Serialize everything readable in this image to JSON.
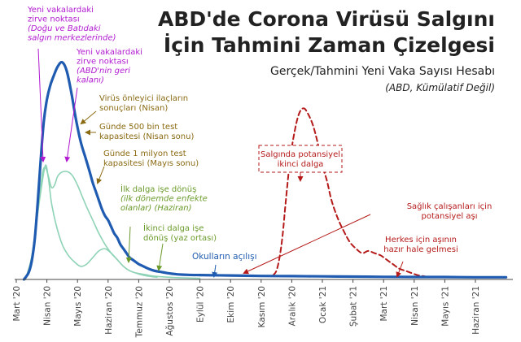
{
  "header": {
    "title_line1": "ABD'de Corona Virüsü Salgını",
    "title_line2": "İçin Tahmini Zaman Çizelgesi",
    "subtitle": "Gerçek/Tahmini Yeni Vaka Sayısı Hesabı",
    "note": "(ABD, Kümülatif Değil)"
  },
  "colors": {
    "us_series": "#1f5bb0",
    "other_series": "#8fd3b6",
    "forecast": "#b51a1a",
    "annotation_purple": "#b21ad1",
    "annotation_olive": "#8a6a12",
    "annotation_green": "#6a9a2a",
    "annotation_blue": "#1f5bb0",
    "annotation_red": "#b51a1a",
    "axis": "#444444"
  },
  "chart_data": {
    "type": "line",
    "title": "ABD'de Corona Virüsü Salgını İçin Tahmini Zaman Çizelgesi",
    "subtitle": "Gerçek/Tahmini Yeni Vaka Sayısı Hesabı",
    "x_tick_labels": [
      "Mart '20",
      "Nisan '20",
      "Mayıs '20",
      "Haziran '20",
      "Temmuz '20",
      "Ağustos '20",
      "Eylül '20",
      "Ekim '20",
      "Kasım '20",
      "Aralık '20",
      "Ocak '21",
      "Şubat '21",
      "Mart '21",
      "Nisan '21",
      "Mayıs '21",
      "Haziran '21"
    ],
    "x_unit": "month index (0 = Mart '20)",
    "y_unit": "relative new cases (0–100)",
    "ylim": [
      0,
      100
    ],
    "grid": false,
    "series": [
      {
        "key": "us_main",
        "style": "solid-thick",
        "x": [
          0.25,
          0.4,
          0.5,
          0.6,
          0.7,
          0.8,
          0.9,
          1.0,
          1.1,
          1.2,
          1.35,
          1.5,
          1.65,
          1.8,
          1.95,
          2.1,
          2.25,
          2.4,
          2.5,
          2.6,
          2.7,
          2.8,
          2.9,
          3.0,
          3.1,
          3.2,
          3.3,
          3.4,
          3.5,
          3.6,
          3.7,
          3.8,
          3.9,
          4.0,
          4.15,
          4.3,
          4.5,
          4.7,
          4.9,
          5.1,
          5.3,
          5.6,
          6.0,
          7.0,
          8.0,
          9.0,
          10.0,
          11.0,
          12.0,
          13.0,
          14.0,
          15.0,
          16.0
        ],
        "y": [
          0,
          3,
          8,
          18,
          35,
          55,
          72,
          82,
          88,
          92,
          97,
          99,
          95,
          85,
          73,
          63,
          56,
          49,
          44,
          40,
          36,
          32,
          29,
          27,
          24,
          21,
          19,
          16,
          14,
          12,
          10,
          9,
          8,
          7,
          6,
          5,
          4,
          3.5,
          3,
          2.6,
          2.3,
          2.1,
          2,
          1.8,
          1.6,
          1.5,
          1.4,
          1.3,
          1.2,
          1.1,
          1.1,
          1,
          1
        ]
      },
      {
        "key": "us_secondary",
        "style": "solid-thin",
        "x": [
          0.3,
          0.5,
          0.7,
          0.85,
          0.95,
          1.05,
          1.15,
          1.25,
          1.35,
          1.5,
          1.7,
          1.85,
          2.0,
          2.15,
          2.3,
          2.5,
          2.7,
          2.9,
          3.1,
          3.3,
          3.5,
          3.7,
          3.9,
          4.1,
          4.3,
          4.5,
          5.0,
          5.5,
          6.0
        ],
        "y": [
          0,
          10,
          30,
          48,
          51,
          47,
          42,
          43,
          47,
          49,
          49,
          47,
          43,
          38,
          33,
          27,
          21,
          16,
          12,
          9,
          6,
          4,
          3,
          2.5,
          2,
          1.5,
          1,
          0.7,
          0.5
        ]
      },
      {
        "key": "outside_us",
        "style": "solid-thin",
        "x": [
          0.3,
          0.5,
          0.65,
          0.8,
          0.95,
          1.05,
          1.15,
          1.3,
          1.5,
          1.7,
          1.9,
          2.1,
          2.3,
          2.5,
          2.7,
          2.9,
          3.1,
          3.3,
          3.5,
          3.7,
          4.0,
          4.3,
          4.6
        ],
        "y": [
          0,
          10,
          25,
          40,
          52,
          46,
          35,
          25,
          16,
          11,
          8,
          6,
          7,
          10,
          13,
          14,
          12,
          9,
          6,
          4,
          2.5,
          1.5,
          1
        ]
      },
      {
        "key": "second_wave_forecast",
        "style": "dashed",
        "x": [
          8.4,
          8.5,
          8.6,
          8.7,
          8.8,
          8.95,
          9.1,
          9.25,
          9.4,
          9.55,
          9.7,
          9.85,
          10.0,
          10.15,
          10.3,
          10.5,
          10.7,
          10.9,
          11.1,
          11.3,
          11.5,
          11.7,
          11.9,
          12.1,
          12.3,
          12.5,
          12.7,
          12.9,
          13.1,
          13.3,
          13.5
        ],
        "y": [
          2,
          4,
          10,
          20,
          35,
          55,
          68,
          76,
          78,
          75,
          70,
          62,
          52,
          45,
          36,
          28,
          22,
          17,
          14,
          12,
          13,
          12,
          11,
          9,
          7,
          5,
          4,
          3,
          2,
          1.5,
          1
        ]
      }
    ],
    "annotations": [
      {
        "color_key": "annotation_purple",
        "lines": [
          [
            "Yeni vakalardaki",
            false
          ],
          [
            "zirve noktası",
            false
          ],
          [
            "(Doğu ve Batıdaki",
            true
          ],
          [
            "salgın merkezlerinde)",
            true
          ]
        ]
      },
      {
        "color_key": "annotation_purple",
        "lines": [
          [
            "Yeni vakalardaki",
            false
          ],
          [
            "zirve noktası",
            false
          ],
          [
            "(ABD'nin geri",
            true
          ],
          [
            "kalanı)",
            true
          ]
        ]
      },
      {
        "color_key": "annotation_olive",
        "lines": [
          [
            "Virüs önleyici ilaçların",
            false
          ],
          [
            "sonuçları (Nisan)",
            false
          ]
        ]
      },
      {
        "color_key": "annotation_olive",
        "lines": [
          [
            "Günde 500 bin test",
            false
          ],
          [
            "kapasitesi (Nisan sonu)",
            false
          ]
        ]
      },
      {
        "color_key": "annotation_olive",
        "lines": [
          [
            "Günde 1 milyon test",
            false
          ],
          [
            "kapasitesi (Mayıs sonu)",
            false
          ]
        ]
      },
      {
        "color_key": "annotation_green",
        "lines": [
          [
            "İlk dalga işe dönüş",
            false
          ],
          [
            "(ilk dönemde enfekte",
            true
          ],
          [
            "olanlar) (Haziran)",
            true
          ]
        ]
      },
      {
        "color_key": "annotation_green",
        "lines": [
          [
            "İkinci dalga işe",
            false
          ],
          [
            "dönüş (yaz ortası)",
            false
          ]
        ]
      },
      {
        "color_key": "annotation_blue",
        "lines": [
          [
            "Okulların açılışı",
            false
          ]
        ]
      },
      {
        "color_key": "annotation_red",
        "lines": [
          [
            "Salgında potansiyel",
            false
          ],
          [
            "ikinci dalga",
            false
          ]
        ]
      },
      {
        "color_key": "annotation_red",
        "lines": [
          [
            "Sağlık çalışanları için",
            false
          ],
          [
            "potansiyel aşı",
            false
          ]
        ]
      },
      {
        "color_key": "annotation_red",
        "lines": [
          [
            "Herkes için aşının",
            false
          ],
          [
            "hazır hale gelmesi",
            false
          ]
        ]
      }
    ]
  }
}
